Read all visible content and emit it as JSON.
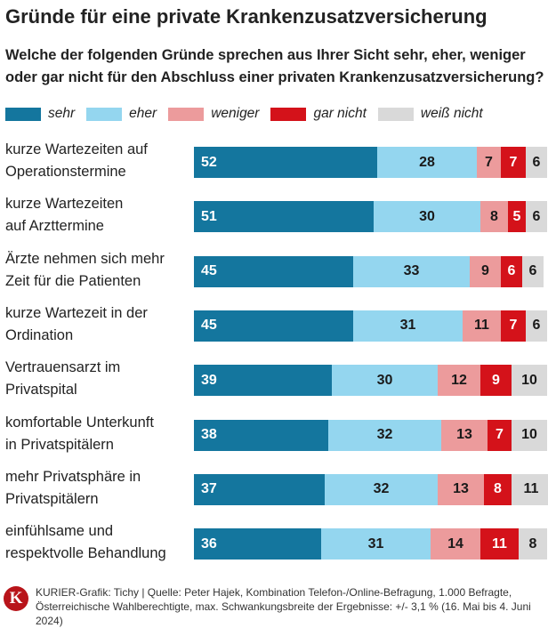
{
  "title": "Gründe für eine private Krankenzusatzversicherung",
  "subtitle": "Welche der folgenden Gründe sprechen aus Ihrer Sicht sehr, eher, weniger oder gar nicht für den Abschluss einer privaten Krankenzusatzversicherung?",
  "colors": {
    "sehr": "#14769e",
    "eher": "#94d6ef",
    "weniger": "#ec9b9c",
    "gar_nicht": "#d4121a",
    "weiss_nicht": "#d9d9d9"
  },
  "footer": {
    "logo_letter": "K",
    "line1": "KURIER-Grafik: Tichy | Quelle: Peter Hajek, Kombination Telefon-/Online-Befragung, 1.000 Befragte,",
    "line2": "Österreichische Wahlberechtigte, max. Schwankungsbreite der Ergebnisse: +/- 3,1 % (16. Mai bis 4. Juni 2024)"
  },
  "chart_data": {
    "type": "bar",
    "orientation": "horizontal",
    "stacked": true,
    "title": "Gründe für eine private Krankenzusatzversicherung",
    "legend_position": "top",
    "categories": [
      [
        "kurze Wartezeiten auf",
        "Operationstermine"
      ],
      [
        "kurze Wartezeiten",
        "auf Arzttermine"
      ],
      [
        "Ärzte nehmen sich mehr",
        "Zeit für die Patienten"
      ],
      [
        "kurze Wartezeit in der",
        "Ordination"
      ],
      [
        "Vertrauensarzt im",
        "Privatspital"
      ],
      [
        "komfortable Unterkunft",
        "in Privatspitälern"
      ],
      [
        "mehr Privatsphäre in",
        "Privatspitälern"
      ],
      [
        "einfühlsame und",
        "respektvolle Behandlung"
      ]
    ],
    "series": [
      {
        "key": "sehr",
        "name": "sehr",
        "text_color": "#ffffff",
        "values": [
          52,
          51,
          45,
          45,
          39,
          38,
          37,
          36
        ]
      },
      {
        "key": "eher",
        "name": "eher",
        "text_color": "#1a1a1a",
        "values": [
          28,
          30,
          33,
          31,
          30,
          32,
          32,
          31
        ]
      },
      {
        "key": "weniger",
        "name": "weniger",
        "text_color": "#1a1a1a",
        "values": [
          7,
          8,
          9,
          11,
          12,
          13,
          13,
          14
        ]
      },
      {
        "key": "gar_nicht",
        "name": "gar nicht",
        "text_color": "#ffffff",
        "values": [
          7,
          5,
          6,
          7,
          9,
          7,
          8,
          11
        ]
      },
      {
        "key": "weiss_nicht",
        "name": "weiß nicht",
        "text_color": "#1a1a1a",
        "values": [
          6,
          6,
          6,
          6,
          10,
          10,
          11,
          8
        ]
      }
    ],
    "xlim": [
      0,
      100
    ]
  }
}
